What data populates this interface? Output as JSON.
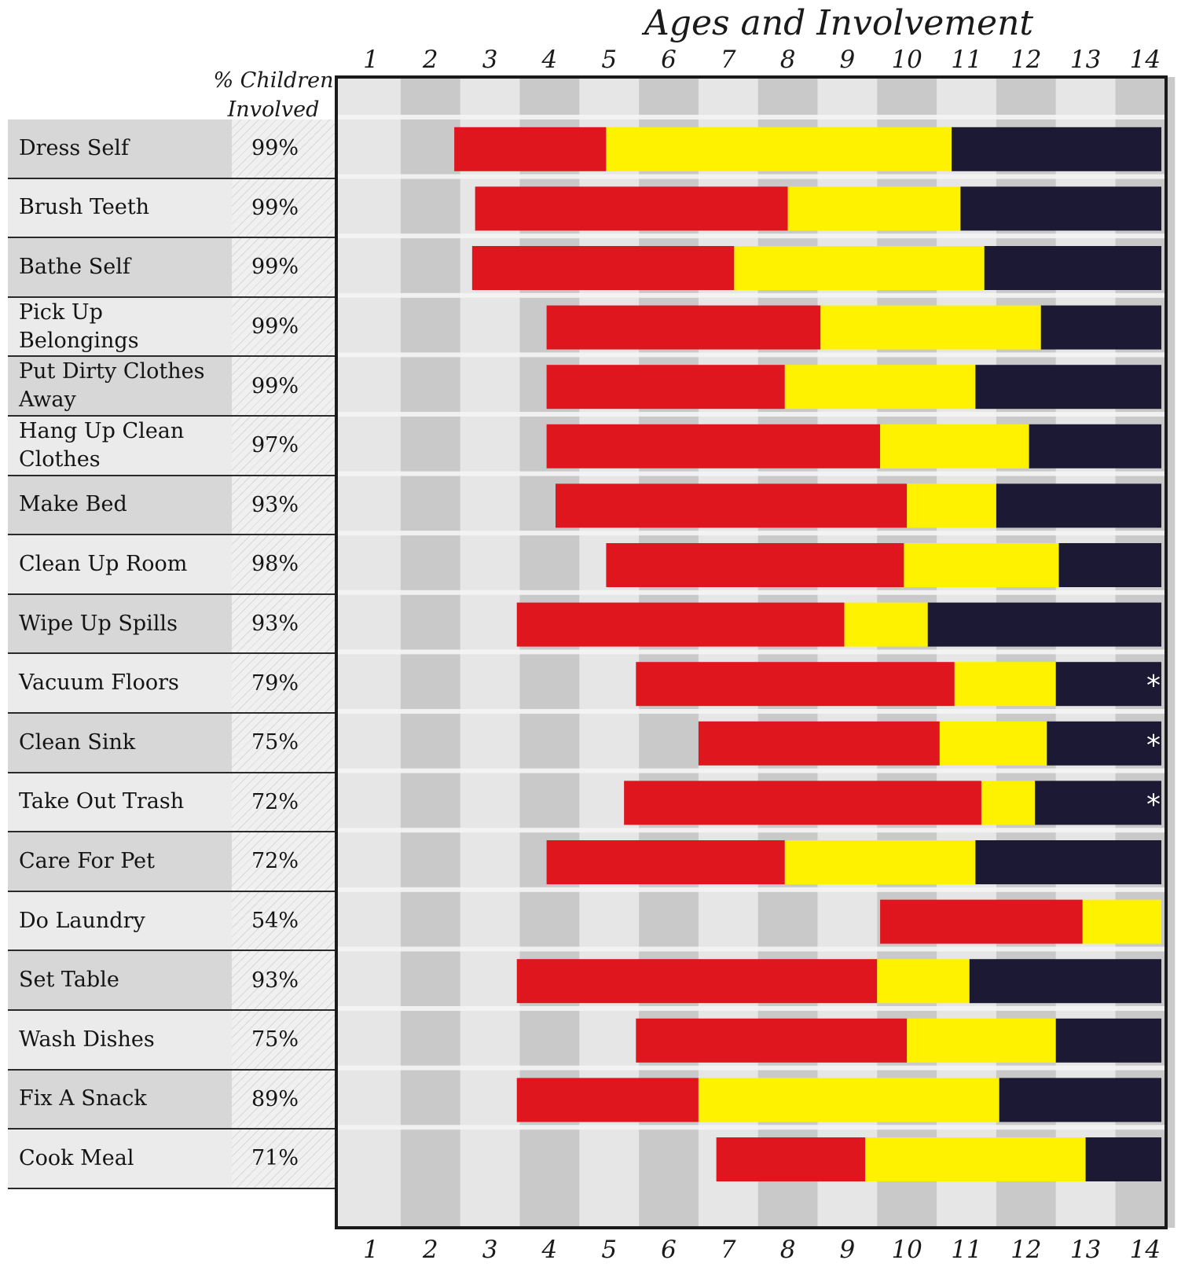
{
  "chart_data": {
    "type": "bar",
    "orientation": "horizontal",
    "stacked": true,
    "title": "Ages and Involvement",
    "column_header": "% Children Involved",
    "x_ticks": [
      "1",
      "2",
      "3",
      "4",
      "5",
      "6",
      "7",
      "8",
      "9",
      "10",
      "11",
      "12",
      "13",
      "14"
    ],
    "xlim": [
      1,
      14
    ],
    "colors": {
      "red": "#e0161e",
      "yellow": "#fff200",
      "dark": "#1c1935",
      "stripe_light": "#e6e6e6",
      "stripe_dark": "#c9c9c9"
    },
    "tasks": [
      {
        "label": "Dress Self",
        "percent": "99%",
        "red_start": 2.4,
        "yellow_start": 4.95,
        "dark_start": 10.75,
        "end": 14.6,
        "star": false
      },
      {
        "label": "Brush Teeth",
        "percent": "99%",
        "red_start": 2.75,
        "yellow_start": 8.0,
        "dark_start": 10.9,
        "end": 14.6,
        "star": false
      },
      {
        "label": "Bathe Self",
        "percent": "99%",
        "red_start": 2.7,
        "yellow_start": 7.1,
        "dark_start": 11.3,
        "end": 14.6,
        "star": false
      },
      {
        "label": "Pick Up Belongings",
        "percent": "99%",
        "red_start": 3.95,
        "yellow_start": 8.55,
        "dark_start": 12.25,
        "end": 14.6,
        "star": false
      },
      {
        "label": "Put Dirty Clothes Away",
        "percent": "99%",
        "red_start": 3.95,
        "yellow_start": 7.95,
        "dark_start": 11.15,
        "end": 14.6,
        "star": false
      },
      {
        "label": "Hang Up Clean Clothes",
        "percent": "97%",
        "red_start": 3.95,
        "yellow_start": 9.55,
        "dark_start": 12.05,
        "end": 14.6,
        "star": false
      },
      {
        "label": "Make Bed",
        "percent": "93%",
        "red_start": 4.1,
        "yellow_start": 10.0,
        "dark_start": 11.5,
        "end": 14.6,
        "star": false
      },
      {
        "label": "Clean Up Room",
        "percent": "98%",
        "red_start": 4.95,
        "yellow_start": 9.95,
        "dark_start": 12.55,
        "end": 14.6,
        "star": false
      },
      {
        "label": "Wipe Up Spills",
        "percent": "93%",
        "red_start": 3.45,
        "yellow_start": 8.95,
        "dark_start": 10.35,
        "end": 14.6,
        "star": false
      },
      {
        "label": "Vacuum Floors",
        "percent": "79%",
        "red_start": 5.45,
        "yellow_start": 10.8,
        "dark_start": 12.5,
        "end": 14.6,
        "star": true
      },
      {
        "label": "Clean Sink",
        "percent": "75%",
        "red_start": 6.5,
        "yellow_start": 10.55,
        "dark_start": 12.35,
        "end": 14.6,
        "star": true
      },
      {
        "label": "Take Out Trash",
        "percent": "72%",
        "red_start": 5.25,
        "yellow_start": 11.25,
        "dark_start": 12.15,
        "end": 14.6,
        "star": true
      },
      {
        "label": "Care For Pet",
        "percent": "72%",
        "red_start": 3.95,
        "yellow_start": 7.95,
        "dark_start": 11.15,
        "end": 14.6,
        "star": false
      },
      {
        "label": "Do Laundry",
        "percent": "54%",
        "red_start": 9.55,
        "yellow_start": 12.95,
        "dark_start": null,
        "end": 14.6,
        "star": false
      },
      {
        "label": "Set Table",
        "percent": "93%",
        "red_start": 3.45,
        "yellow_start": 9.5,
        "dark_start": 11.05,
        "end": 14.6,
        "star": false
      },
      {
        "label": "Wash Dishes",
        "percent": "75%",
        "red_start": 5.45,
        "yellow_start": 10.0,
        "dark_start": 12.5,
        "end": 14.6,
        "star": false
      },
      {
        "label": "Fix A Snack",
        "percent": "89%",
        "red_start": 3.45,
        "yellow_start": 6.5,
        "dark_start": 11.55,
        "end": 14.6,
        "star": false
      },
      {
        "label": "Cook Meal",
        "percent": "71%",
        "red_start": 6.8,
        "yellow_start": 9.3,
        "dark_start": 13.0,
        "end": 14.6,
        "star": false
      }
    ]
  }
}
